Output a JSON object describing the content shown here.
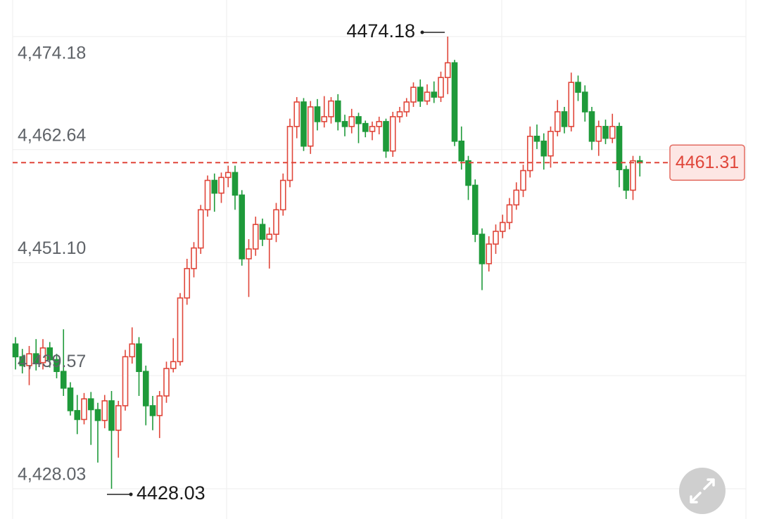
{
  "chart_data": {
    "type": "candlestick",
    "up_color": "#e0463a",
    "down_color": "#1e9a3a",
    "grid": true,
    "ylim": [
      4424.94,
      4477.91
    ],
    "yticks": [
      {
        "value": 4474.18,
        "label": "4,474.18"
      },
      {
        "value": 4462.64,
        "label": "4,462.64"
      },
      {
        "value": 4451.1,
        "label": "4,451.10"
      },
      {
        "value": 4439.57,
        "label": "4,439.57"
      },
      {
        "value": 4428.03,
        "label": "4,428.03"
      }
    ],
    "open": [
      4442.8,
      4441.5,
      4440.6,
      4441.8,
      4440.9,
      4442.4,
      4441.2,
      4440.0,
      4438.3,
      4436.0,
      4435.1,
      4437.2,
      4436.1,
      4435.0,
      4437.0,
      4434.0,
      4436.5,
      4441.5,
      4442.8,
      4440.0,
      4436.5,
      4435.5,
      4437.5,
      4440.3,
      4441.0,
      4447.5,
      4450.5,
      4452.6,
      4456.5,
      4459.5,
      4458.2,
      4459.8,
      4460.3,
      4458.0,
      4451.5,
      4452.5,
      4455.0,
      4453.5,
      4454.0,
      4456.5,
      4459.5,
      4465.0,
      4467.5,
      4463.0,
      4467.0,
      4465.5,
      4466.0,
      4467.6,
      4465.5,
      4465.0,
      4466.0,
      4465.3,
      4464.5,
      4465.0,
      4465.5,
      4462.5,
      4466.0,
      4466.5,
      4467.5,
      4469.0,
      4467.6,
      4468.5,
      4468.0,
      4470.0,
      4471.5,
      4463.5,
      4461.5,
      4459.0,
      4454.0,
      4451.0,
      4453.0,
      4454.3,
      4455.2,
      4457.0,
      4458.5,
      4460.5,
      4464.0,
      4463.5,
      4462.0,
      4464.5,
      4466.5,
      4465.0,
      4469.5,
      4468.5,
      4466.5,
      4463.5,
      4465.0,
      4463.8,
      4465.0,
      4460.6,
      4458.5,
      4461.5
    ],
    "high": [
      4443.5,
      4442.3,
      4442.6,
      4443.3,
      4443.3,
      4443.0,
      4441.8,
      4444.3,
      4438.9,
      4437.6,
      4437.8,
      4437.9,
      4436.8,
      4437.6,
      4438.0,
      4437.0,
      4442.2,
      4444.5,
      4443.5,
      4440.6,
      4437.5,
      4438.0,
      4441.0,
      4443.4,
      4448.0,
      4451.5,
      4453.2,
      4457.0,
      4460.0,
      4460.2,
      4460.3,
      4461.0,
      4461.0,
      4458.5,
      4453.5,
      4455.8,
      4455.6,
      4454.7,
      4457.2,
      4460.2,
      4465.8,
      4468.0,
      4467.9,
      4467.6,
      4467.8,
      4468.1,
      4468.0,
      4468.3,
      4466.2,
      4466.8,
      4466.4,
      4465.6,
      4465.5,
      4466.0,
      4465.8,
      4466.5,
      4467.0,
      4467.9,
      4469.5,
      4469.8,
      4469.3,
      4469.6,
      4470.6,
      4474.18,
      4471.8,
      4465.0,
      4462.0,
      4459.6,
      4454.6,
      4453.8,
      4455.0,
      4456.0,
      4457.7,
      4459.3,
      4461.1,
      4465.0,
      4465.2,
      4464.3,
      4465.0,
      4467.7,
      4467.0,
      4470.5,
      4470.2,
      4469.2,
      4467.0,
      4465.6,
      4465.7,
      4466.3,
      4465.4,
      4461.0,
      4462.0,
      4462.0
    ],
    "low": [
      4440.2,
      4439.8,
      4438.6,
      4440.1,
      4440.2,
      4440.4,
      4439.3,
      4437.5,
      4435.5,
      4433.6,
      4434.6,
      4432.5,
      4430.7,
      4434.2,
      4428.03,
      4431.2,
      4436.0,
      4440.8,
      4437.5,
      4434.5,
      4434.0,
      4433.2,
      4436.8,
      4439.9,
      4440.6,
      4446.8,
      4449.6,
      4452.0,
      4455.8,
      4456.3,
      4457.2,
      4458.8,
      4456.5,
      4450.8,
      4447.6,
      4451.8,
      4452.8,
      4450.5,
      4453.2,
      4455.9,
      4458.8,
      4463.8,
      4462.5,
      4462.2,
      4464.6,
      4464.9,
      4465.3,
      4464.6,
      4464.0,
      4464.3,
      4463.3,
      4463.9,
      4463.6,
      4464.2,
      4461.8,
      4461.9,
      4465.4,
      4466.0,
      4467.0,
      4467.0,
      4467.2,
      4467.4,
      4467.5,
      4468.3,
      4463.0,
      4460.6,
      4457.5,
      4453.2,
      4448.3,
      4450.2,
      4452.0,
      4453.6,
      4454.5,
      4456.5,
      4457.8,
      4459.8,
      4462.7,
      4460.6,
      4460.8,
      4464.0,
      4464.3,
      4464.5,
      4467.6,
      4465.5,
      4462.6,
      4462.0,
      4463.2,
      4463.3,
      4458.8,
      4457.6,
      4457.5,
      4459.9
    ],
    "close": [
      4441.5,
      4440.6,
      4441.8,
      4440.9,
      4442.4,
      4441.2,
      4440.0,
      4438.3,
      4436.0,
      4435.1,
      4437.2,
      4436.1,
      4435.0,
      4437.0,
      4434.0,
      4436.5,
      4441.5,
      4442.8,
      4440.0,
      4436.5,
      4435.5,
      4437.5,
      4440.3,
      4441.0,
      4447.5,
      4450.5,
      4452.6,
      4456.5,
      4459.5,
      4458.2,
      4459.8,
      4460.3,
      4458.0,
      4451.5,
      4452.5,
      4455.0,
      4453.5,
      4454.0,
      4456.5,
      4459.5,
      4465.0,
      4467.5,
      4463.0,
      4467.0,
      4465.5,
      4466.0,
      4467.6,
      4465.5,
      4465.0,
      4466.0,
      4465.3,
      4464.5,
      4465.0,
      4465.5,
      4462.5,
      4466.0,
      4466.5,
      4467.5,
      4469.0,
      4467.6,
      4468.5,
      4468.0,
      4470.0,
      4471.5,
      4463.5,
      4461.5,
      4459.0,
      4454.0,
      4451.0,
      4453.0,
      4454.3,
      4455.2,
      4457.0,
      4458.5,
      4460.5,
      4464.0,
      4463.5,
      4462.0,
      4464.5,
      4466.5,
      4465.0,
      4469.5,
      4468.5,
      4466.5,
      4463.5,
      4465.0,
      4463.8,
      4465.0,
      4460.6,
      4458.5,
      4461.5,
      4461.31
    ],
    "annotations": {
      "high": 4474.18,
      "low": 4428.03,
      "last": 4461.31
    }
  }
}
